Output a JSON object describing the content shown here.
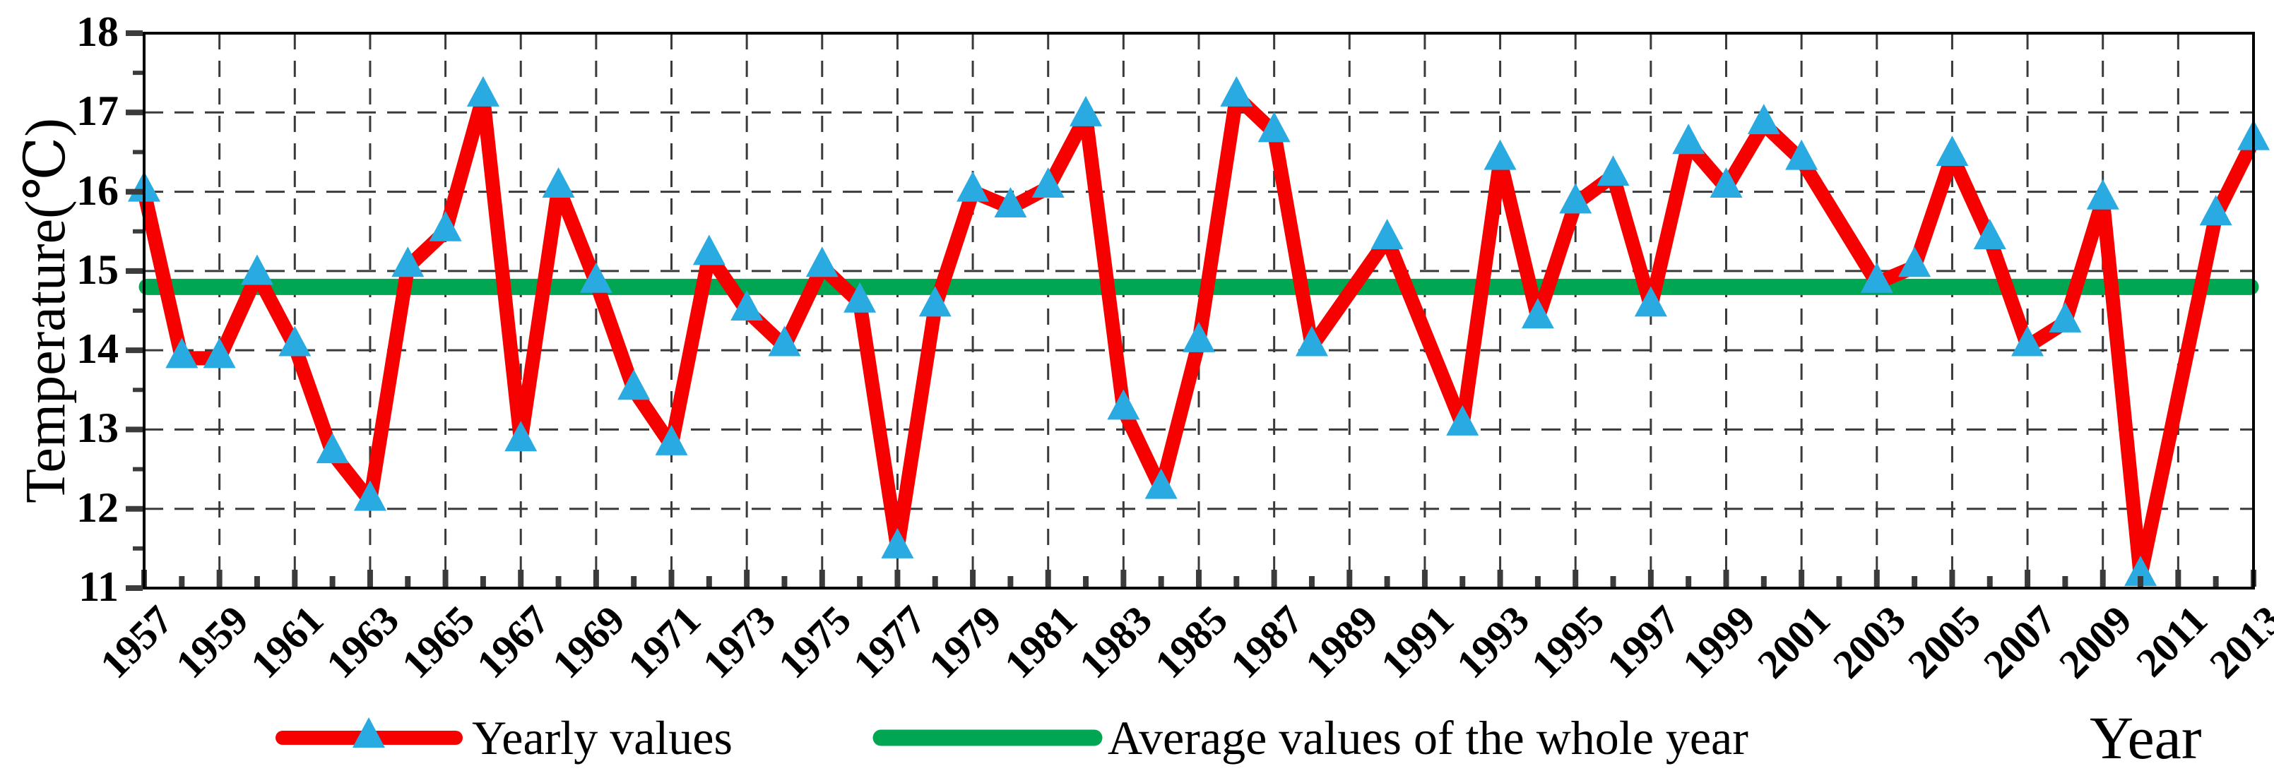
{
  "chart_data": {
    "type": "line",
    "title": "",
    "xlabel": "Year",
    "ylabel": "Temperature(℃)",
    "ylim": [
      11,
      18
    ],
    "xlim_years": [
      1957,
      2013
    ],
    "grid": "dashed gray lines at every 1°C (12-17) and every odd year",
    "legend_position": "bottom center, horizontal",
    "ytick_labels": [
      "18",
      "17",
      "16",
      "15",
      "14",
      "13",
      "12",
      "11"
    ],
    "xtick_labels": [
      "1957",
      "1959",
      "1961",
      "1963",
      "1965",
      "1967",
      "1969",
      "1971",
      "1973",
      "1975",
      "1977",
      "1979",
      "1981",
      "1983",
      "1985",
      "1987",
      "1989",
      "1991",
      "1993",
      "1995",
      "1997",
      "1999",
      "2001",
      "2003",
      "2005",
      "2007",
      "2009",
      "2011",
      "2013"
    ],
    "average_value": 14.8,
    "series": [
      {
        "name": "Yearly values",
        "type": "line-with-markers",
        "color": "#F60000",
        "marker": "triangle-up",
        "marker_color": "#29ABE2",
        "points": [
          [
            1957,
            16.0
          ],
          [
            1958,
            13.9
          ],
          [
            1959,
            13.9
          ],
          [
            1960,
            14.95
          ],
          [
            1961,
            14.05
          ],
          [
            1962,
            12.7
          ],
          [
            1963,
            12.1
          ],
          [
            1964,
            15.05
          ],
          [
            1965,
            15.5
          ],
          [
            1966,
            17.2
          ],
          [
            1967,
            12.85
          ],
          [
            1968,
            16.05
          ],
          [
            1969,
            14.85
          ],
          [
            1970,
            13.5
          ],
          [
            1971,
            12.8
          ],
          [
            1972,
            15.2
          ],
          [
            1973,
            14.5
          ],
          [
            1974,
            14.05
          ],
          [
            1975,
            15.05
          ],
          [
            1976,
            14.6
          ],
          [
            1977,
            11.5
          ],
          [
            1978,
            14.55
          ],
          [
            1979,
            16.0
          ],
          [
            1980,
            15.8
          ],
          [
            1981,
            16.05
          ],
          [
            1982,
            16.95
          ],
          [
            1983,
            13.25
          ],
          [
            1984,
            12.25
          ],
          [
            1985,
            14.1
          ],
          [
            1986,
            17.2
          ],
          [
            1987,
            16.75
          ],
          [
            1988,
            14.05
          ],
          [
            1990,
            15.4
          ],
          [
            1992,
            13.05
          ],
          [
            1993,
            16.4
          ],
          [
            1994,
            14.4
          ],
          [
            1995,
            15.85
          ],
          [
            1996,
            16.2
          ],
          [
            1997,
            14.55
          ],
          [
            1998,
            16.6
          ],
          [
            1999,
            16.05
          ],
          [
            2000,
            16.85
          ],
          [
            2001,
            16.4
          ],
          [
            2003,
            14.85
          ],
          [
            2004,
            15.05
          ],
          [
            2005,
            16.45
          ],
          [
            2006,
            15.4
          ],
          [
            2007,
            14.05
          ],
          [
            2008,
            14.35
          ],
          [
            2009,
            15.9
          ],
          [
            2010,
            11.15
          ],
          [
            2012,
            15.7
          ],
          [
            2013,
            16.65
          ]
        ]
      },
      {
        "name": "Average values of the whole year",
        "type": "horizontal-line",
        "color": "#00A651",
        "value": 14.8
      }
    ]
  },
  "colors": {
    "line_red": "#F60000",
    "line_green": "#00A651",
    "marker_blue": "#29ABE2",
    "grid_gray": "#3A3A3A",
    "tick_gray": "#3B3B3B",
    "axis_black": "#000000",
    "background": "#FFFFFF"
  }
}
